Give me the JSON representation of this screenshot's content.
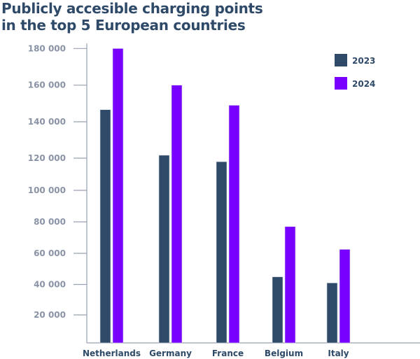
{
  "chart_data": {
    "type": "bar",
    "title": [
      "Publicly accesible charging points",
      "in the top 5 European countries"
    ],
    "xlabel": "",
    "ylabel": "",
    "categories": [
      "Netherlands",
      "Germany",
      "France",
      "Belgium",
      "Italy"
    ],
    "series": [
      {
        "name": "2023",
        "color": "#2e4a68",
        "values": [
          146600,
          121600,
          117800,
          44900,
          41000
        ]
      },
      {
        "name": "2024",
        "color": "#7700ff",
        "values": [
          180000,
          160000,
          149000,
          77000,
          62500
        ]
      }
    ],
    "yticks": [
      20000,
      40000,
      60000,
      80000,
      100000,
      120000,
      140000,
      160000,
      180000
    ],
    "ytick_labels": [
      "20 000",
      "40 000",
      "60 000",
      "80 000",
      "100 000",
      "120 000",
      "140 000",
      "160 000",
      "180 000"
    ],
    "ylim": [
      0,
      180000
    ],
    "grid": false,
    "legend_position": "top-right"
  }
}
